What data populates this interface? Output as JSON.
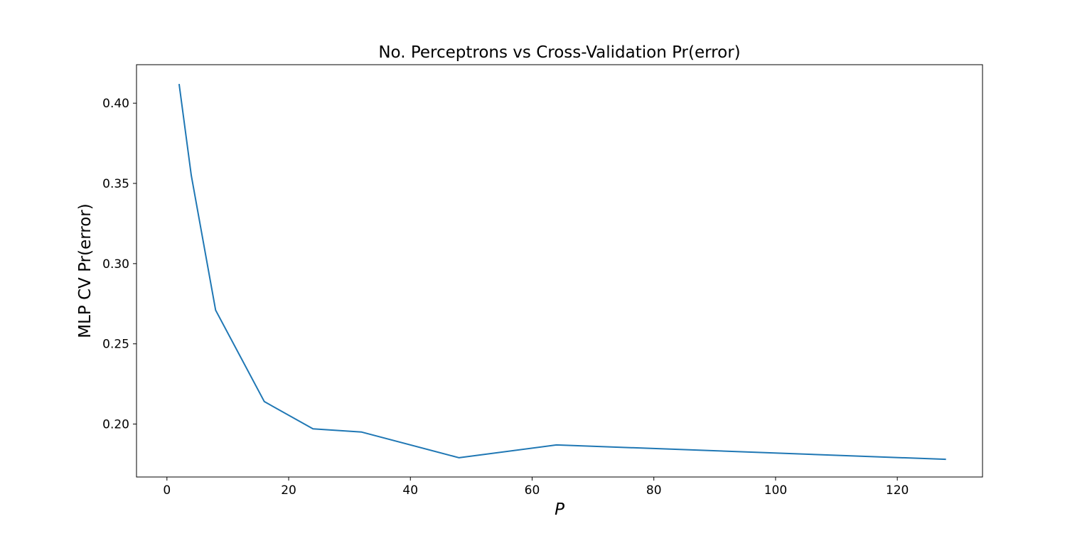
{
  "chart_data": {
    "type": "line",
    "title": "No. Perceptrons vs Cross-Validation Pr(error)",
    "xlabel": "P",
    "ylabel": "MLP CV Pr(error)",
    "xlim": [
      -5,
      134
    ],
    "ylim": [
      0.167,
      0.424
    ],
    "x_ticks": [
      0,
      20,
      40,
      60,
      80,
      100,
      120
    ],
    "y_ticks": [
      0.2,
      0.25,
      0.3,
      0.35,
      0.4
    ],
    "x_tick_labels": [
      "0",
      "20",
      "40",
      "60",
      "80",
      "100",
      "120"
    ],
    "y_tick_labels": [
      "0.20",
      "0.25",
      "0.30",
      "0.35",
      "0.40"
    ],
    "grid": false,
    "legend": "none",
    "series": [
      {
        "color": "#1f77b4",
        "x": [
          2,
          4,
          8,
          16,
          24,
          32,
          48,
          64,
          128
        ],
        "y": [
          0.412,
          0.355,
          0.271,
          0.214,
          0.197,
          0.195,
          0.179,
          0.187,
          0.178
        ]
      }
    ]
  }
}
